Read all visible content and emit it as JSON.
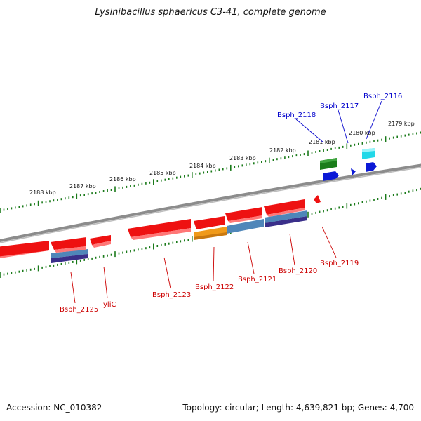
{
  "title": "Lysinibacillus sphaericus C3-41, complete genome",
  "footer": {
    "accession": "Accession: NC_010382",
    "summary": "Topology: circular; Length: 4,639,821 bp; Genes: 4,700"
  },
  "colors": {
    "backbone": "#8c8c8c",
    "ruler_ticks": "#1a7a1a",
    "red_gene": "#ee1111",
    "red_gene_shadow": "#ff7777",
    "blue_gene": "#0b19d6",
    "green_gene": "#1a7d1a",
    "cyan_gene": "#22d8e8",
    "steelblue_domain": "#4f86b9",
    "navy_domain": "#3a2f8a",
    "orange_domain": "#f09a1a",
    "red_label": "#cc0000",
    "blue_label": "#0000cc"
  },
  "kbp_labels": [
    "2188 kbp",
    "2187 kbp",
    "2186 kbp",
    "2185 kbp",
    "2184 kbp",
    "2183 kbp",
    "2182 kbp",
    "2181 kbp",
    "2180 kbp",
    "2179 kbp"
  ],
  "top_genes": [
    "Bsph_2118",
    "Bsph_2117",
    "Bsph_2116"
  ],
  "bottom_genes": [
    "Bsph_2125",
    "yliC",
    "Bsph_2123",
    "Bsph_2122",
    "Bsph_2121",
    "Bsph_2120",
    "Bsph_2119"
  ]
}
